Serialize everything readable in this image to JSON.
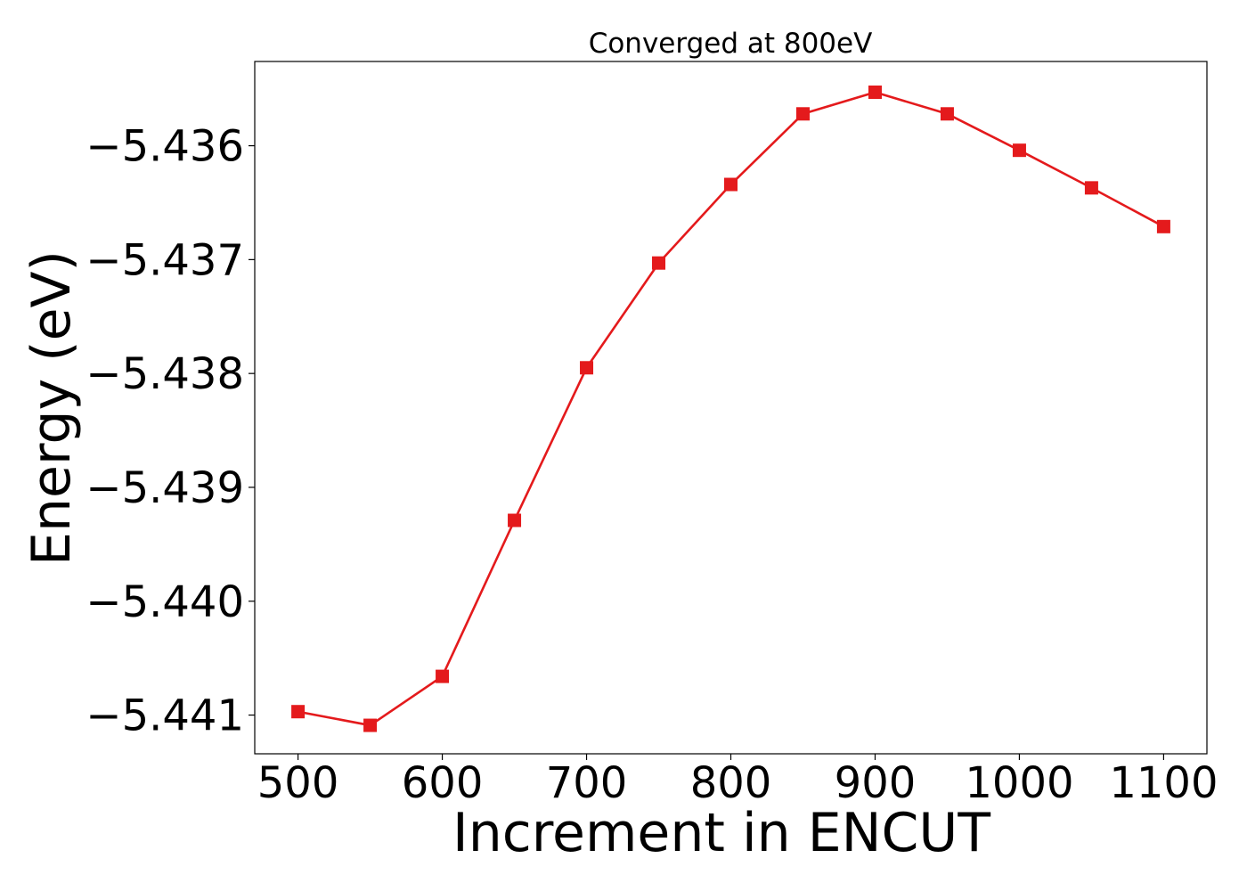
{
  "chart_data": {
    "type": "line",
    "title": "Converged at 800eV",
    "xlabel": "Increment in ENCUT",
    "ylabel": "Energy (eV)",
    "x": [
      500,
      550,
      600,
      650,
      700,
      750,
      800,
      850,
      900,
      950,
      1000,
      1050,
      1100
    ],
    "series": [
      {
        "values": [
          -5.44097,
          -5.44109,
          -5.44066,
          -5.43929,
          -5.43795,
          -5.43703,
          -5.43634,
          -5.43572,
          -5.43553,
          -5.43572,
          -5.43604,
          -5.43637,
          -5.43671
        ],
        "color": "#e41a1c",
        "marker": "square"
      }
    ],
    "xticks": [
      500,
      600,
      700,
      800,
      900,
      1000,
      1100
    ],
    "xtick_labels": [
      "500",
      "600",
      "700",
      "800",
      "900",
      "1000",
      "1100"
    ],
    "yticks": [
      -5.441,
      -5.44,
      -5.439,
      -5.438,
      -5.437,
      -5.436
    ],
    "ytick_labels": [
      "−5.441",
      "−5.440",
      "−5.439",
      "−5.438",
      "−5.437",
      "−5.436"
    ],
    "xlim": [
      470,
      1130
    ],
    "ylim": [
      -5.44134,
      -5.43526
    ],
    "grid": false,
    "legend": "none"
  }
}
